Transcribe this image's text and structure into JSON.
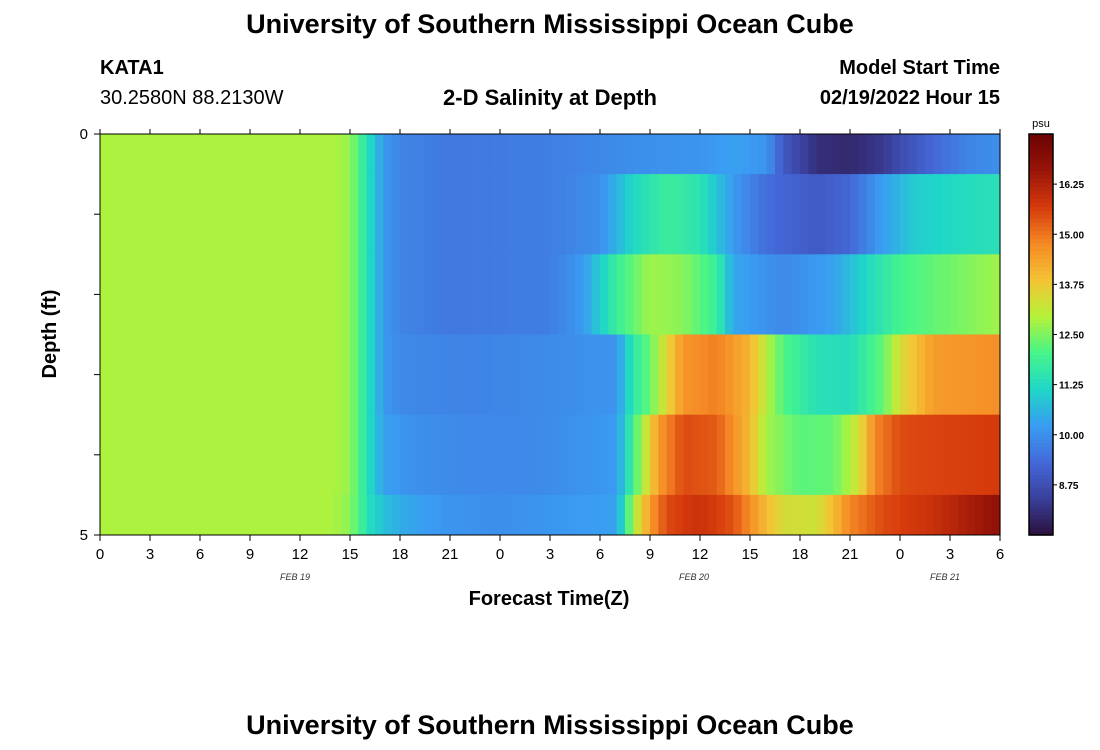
{
  "header": {
    "title": "University of Southern Mississippi Ocean Cube",
    "station": "KATA1",
    "coords": "30.2580N  88.2130W",
    "plot_title": "2-D Salinity at Depth",
    "model_start_label": "Model Start Time",
    "model_start_value": "02/19/2022 Hour 15"
  },
  "footer": {
    "title": "University of Southern Mississippi Ocean Cube"
  },
  "chart_data": {
    "type": "heatmap",
    "title": "2-D Salinity at Depth",
    "xlabel": "Forecast Time(Z)",
    "ylabel": "Depth (ft)",
    "x_ticks": [
      "0",
      "3",
      "6",
      "9",
      "12",
      "15",
      "18",
      "21",
      "0",
      "3",
      "6",
      "9",
      "12",
      "15",
      "18",
      "21",
      "0",
      "3",
      "6"
    ],
    "date_labels": [
      "FEB 19",
      "FEB 20",
      "FEB 21"
    ],
    "y_ticks": [
      "0",
      "5"
    ],
    "xlim_hours": [
      0,
      54
    ],
    "ylim": [
      0,
      5
    ],
    "colorbar": {
      "unit": "psu",
      "ticks": [
        "8.75",
        "10.00",
        "11.25",
        "12.50",
        "13.75",
        "15.00",
        "16.25"
      ],
      "range": [
        7.5,
        17.5
      ],
      "colors": [
        "#2a0f3a",
        "#3a3f9a",
        "#4468d8",
        "#3a9cf2",
        "#1fd6c8",
        "#46f58a",
        "#b4f23a",
        "#f4c435",
        "#f58a25",
        "#d63a0c",
        "#9a1508",
        "#6b0303"
      ]
    },
    "layers": [
      {
        "depth": [
          0,
          0.5
        ],
        "knots": [
          [
            0,
            12.9
          ],
          [
            14,
            12.9
          ],
          [
            15,
            12.7
          ],
          [
            16.2,
            11.2
          ],
          [
            17,
            10.2
          ],
          [
            18,
            9.8
          ],
          [
            21,
            9.6
          ],
          [
            27,
            9.7
          ],
          [
            32,
            10.0
          ],
          [
            36,
            10.1
          ],
          [
            38,
            10.3
          ],
          [
            40,
            10.1
          ],
          [
            41,
            9.0
          ],
          [
            43,
            8.1
          ],
          [
            45,
            8.0
          ],
          [
            47,
            8.3
          ],
          [
            48,
            8.7
          ],
          [
            50,
            9.3
          ],
          [
            52,
            9.8
          ],
          [
            54,
            10.0
          ]
        ]
      },
      {
        "depth": [
          0.5,
          1.5
        ],
        "knots": [
          [
            0,
            12.9
          ],
          [
            14,
            12.9
          ],
          [
            15,
            12.7
          ],
          [
            16.2,
            11.2
          ],
          [
            17,
            10.2
          ],
          [
            18,
            9.8
          ],
          [
            21,
            9.6
          ],
          [
            27,
            9.7
          ],
          [
            30,
            10.0
          ],
          [
            32,
            11.2
          ],
          [
            34,
            11.8
          ],
          [
            36,
            11.5
          ],
          [
            38,
            10.2
          ],
          [
            40,
            9.4
          ],
          [
            43,
            9.0
          ],
          [
            45,
            9.3
          ],
          [
            47,
            10.3
          ],
          [
            49,
            11.0
          ],
          [
            52,
            11.3
          ],
          [
            54,
            11.4
          ]
        ]
      },
      {
        "depth": [
          1.5,
          2.5
        ],
        "knots": [
          [
            0,
            12.9
          ],
          [
            14,
            12.9
          ],
          [
            15,
            12.7
          ],
          [
            16.2,
            11.2
          ],
          [
            17,
            10.2
          ],
          [
            18,
            9.8
          ],
          [
            21,
            9.6
          ],
          [
            27,
            9.7
          ],
          [
            29,
            10.2
          ],
          [
            31,
            11.8
          ],
          [
            33,
            12.8
          ],
          [
            35,
            12.6
          ],
          [
            37,
            11.8
          ],
          [
            38,
            10.4
          ],
          [
            41,
            9.9
          ],
          [
            44,
            10.3
          ],
          [
            46,
            11.2
          ],
          [
            48,
            12.0
          ],
          [
            51,
            12.4
          ],
          [
            54,
            12.8
          ]
        ]
      },
      {
        "depth": [
          2.5,
          3.5
        ],
        "knots": [
          [
            0,
            12.9
          ],
          [
            14,
            12.9
          ],
          [
            15,
            12.7
          ],
          [
            16.2,
            11.2
          ],
          [
            17,
            10.2
          ],
          [
            18,
            9.9
          ],
          [
            22,
            9.8
          ],
          [
            26,
            9.9
          ],
          [
            31,
            10.1
          ],
          [
            32,
            11.6
          ],
          [
            33,
            12.3
          ],
          [
            34,
            13.5
          ],
          [
            35,
            14.6
          ],
          [
            37,
            14.9
          ],
          [
            39,
            14.1
          ],
          [
            40,
            13.0
          ],
          [
            41,
            12.1
          ],
          [
            43,
            11.4
          ],
          [
            45,
            11.3
          ],
          [
            47,
            12.3
          ],
          [
            48,
            13.4
          ],
          [
            50,
            14.5
          ],
          [
            54,
            14.7
          ]
        ]
      },
      {
        "depth": [
          3.5,
          4.5
        ],
        "knots": [
          [
            0,
            12.9
          ],
          [
            14,
            12.9
          ],
          [
            15,
            12.7
          ],
          [
            16.2,
            11.2
          ],
          [
            17,
            10.3
          ],
          [
            19,
            10.0
          ],
          [
            22,
            9.9
          ],
          [
            26,
            9.9
          ],
          [
            31,
            10.2
          ],
          [
            31.8,
            11.6
          ],
          [
            32.5,
            12.8
          ],
          [
            33.5,
            14.5
          ],
          [
            35,
            15.5
          ],
          [
            37,
            15.3
          ],
          [
            39,
            14.0
          ],
          [
            40,
            12.8
          ],
          [
            42,
            12.2
          ],
          [
            44,
            12.3
          ],
          [
            45.5,
            13.3
          ],
          [
            46.5,
            14.8
          ],
          [
            48,
            15.5
          ],
          [
            54,
            15.7
          ]
        ]
      },
      {
        "depth": [
          4.5,
          5
        ],
        "knots": [
          [
            0,
            12.9
          ],
          [
            14,
            12.9
          ],
          [
            15,
            12.6
          ],
          [
            16.3,
            11.2
          ],
          [
            17.5,
            10.6
          ],
          [
            19,
            10.3
          ],
          [
            21,
            10.1
          ],
          [
            24,
            10.0
          ],
          [
            31,
            10.3
          ],
          [
            31.5,
            11.6
          ],
          [
            32,
            12.9
          ],
          [
            33,
            14.5
          ],
          [
            34,
            15.5
          ],
          [
            36,
            15.9
          ],
          [
            38,
            15.4
          ],
          [
            40,
            14.0
          ],
          [
            41,
            13.4
          ],
          [
            43,
            13.3
          ],
          [
            44,
            14.0
          ],
          [
            45,
            14.8
          ],
          [
            47,
            15.5
          ],
          [
            50,
            15.9
          ],
          [
            54,
            16.8
          ]
        ]
      }
    ]
  }
}
